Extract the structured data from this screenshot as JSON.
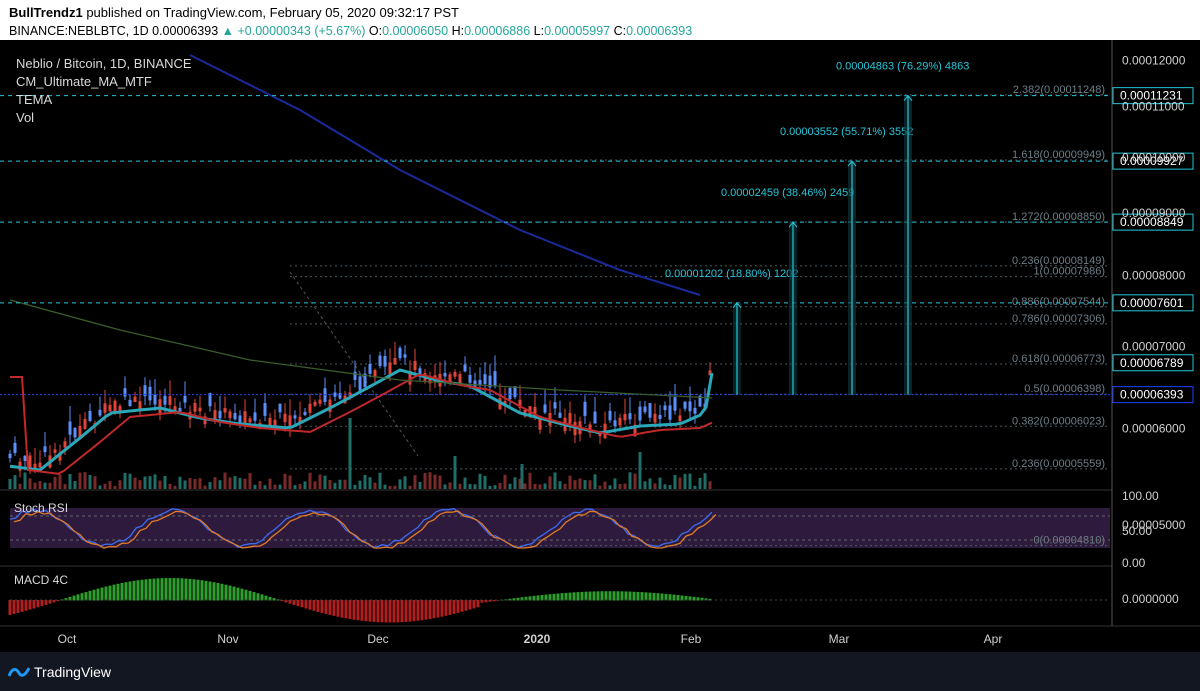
{
  "header": {
    "author": "BullTrendz1",
    "published": "published on TradingView.com, February 05, 2020 09:32:17 PST",
    "symbol": "BINANCE:NEBLBTC, 1D",
    "last": "0.00006393",
    "change": "+0.00000343 (+5.67%)",
    "o_label": "O:",
    "o": "0.00006050",
    "h_label": "H:",
    "h": "0.00006886",
    "l_label": "L:",
    "l": "0.00005997",
    "c_label": "C:",
    "c": "0.00006393"
  },
  "legend": {
    "title": "Neblio / Bitcoin, 1D, BINANCE",
    "indicators": [
      "CM_Ultimate_MA_MTF",
      "TEMA",
      "Vol"
    ]
  },
  "footer": {
    "brand": "TradingView"
  },
  "colors": {
    "background": "#000000",
    "up": "#5b8ff9",
    "down": "#e0453a",
    "target": "#26c6da",
    "fib": "#4a5a63",
    "rsi_band": "#2d1a3d",
    "macd_up": "#2e9e2e",
    "macd_down": "#b02020",
    "current_price": "#1e40ff"
  },
  "chart_data": {
    "type": "candlestick",
    "price_axis": {
      "ticks": [
        "0.00012000",
        "0.00011000",
        "0.00010000",
        "0.00009000",
        "0.00008000",
        "0.00007000",
        "0.00006000",
        "0.00005000"
      ],
      "badges": [
        "0.00011231",
        "0.00009927",
        "0.00008849",
        "0.00007601",
        "0.00006789",
        "0.00006393"
      ]
    },
    "time_axis": {
      "ticks": [
        "Oct",
        "Nov",
        "Dec",
        "2020",
        "Feb",
        "Mar",
        "Apr"
      ]
    },
    "fib_retracement": [
      {
        "label": "0(0.00004810)",
        "level": 4.81e-05
      },
      {
        "label": "0.236(0.00005559)",
        "level": 5.559e-05
      },
      {
        "label": "0.382(0.00006023)",
        "level": 6.023e-05
      },
      {
        "label": "0.5(0.00006398)",
        "level": 6.398e-05
      },
      {
        "label": "0.618(0.00006773)",
        "level": 6.773e-05
      },
      {
        "label": "0.786(0.00007306)",
        "level": 7.306e-05
      },
      {
        "label": "0.886(0.00007544)",
        "level": 7.544e-05
      },
      {
        "label": "1(0.00007986)",
        "level": 7.986e-05
      },
      {
        "label": "0.236(0.00008149)",
        "level": 8.149e-05
      },
      {
        "label": "1.272(0.00008850)",
        "level": 8.85e-05
      },
      {
        "label": "1.618(0.00009949)",
        "level": 9.949e-05
      },
      {
        "label": "2.382(0.00011248)",
        "level": 0.00011248
      }
    ],
    "targets": [
      {
        "label": "0.00001202 (18.80%) 1202",
        "price": 7.601e-05
      },
      {
        "label": "0.00002459 (38.46%) 2459",
        "price": 8.849e-05
      },
      {
        "label": "0.00003552 (55.71%) 3552",
        "price": 9.927e-05
      },
      {
        "label": "0.00004863 (76.29%) 4863",
        "price": 0.00011231
      }
    ],
    "stoch_rsi": {
      "title": "Stoch RSI",
      "ticks": [
        "100.00",
        "50.00",
        "0.00"
      ],
      "levels": [
        80,
        20
      ]
    },
    "macd": {
      "title": "MACD 4C",
      "ticks": [
        "0.0000000"
      ]
    }
  }
}
